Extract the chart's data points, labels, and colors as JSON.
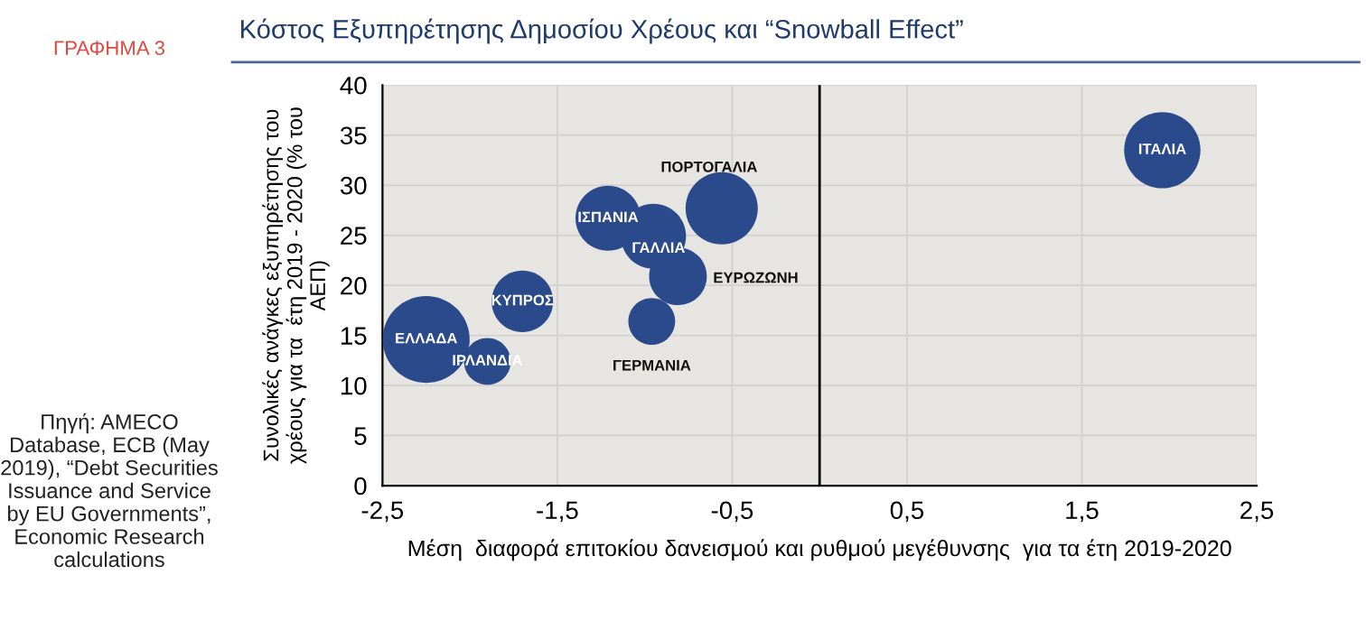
{
  "chart_data": {
    "type": "bubble",
    "title": "Κόστος Εξυπηρέτησης Δημοσίου Χρέους και “Snowball Effect”",
    "subtitle": "ΓΡΑΦΗΜΑ 3",
    "xlabel": "Μέση  διαφορά επιτοκίου δανεισμού και ρυθμού μεγέθυνσης  για τα έτη 2019-2020",
    "ylabel": "Συνολικές ανάγκες εξυπηρέτησης του\nχρέους για τα  έτη 2019 - 2020 (% του\nΑΕΠ)",
    "x": [
      -2.25,
      -1.9,
      -1.7,
      -1.21,
      -0.95,
      -0.81,
      -0.96,
      -0.56,
      1.96
    ],
    "series": [
      {
        "color": "#2b4a8c",
        "values": [
          14.6,
          12.4,
          18.4,
          26.7,
          24.9,
          20.9,
          16.4,
          27.7,
          33.5
        ],
        "sizes": [
          1,
          0.29,
          0.5,
          0.56,
          0.56,
          0.44,
          0.29,
          0.69,
          0.77
        ]
      }
    ],
    "xlim": [
      -2.5,
      2.5
    ],
    "ylim": [
      0,
      40
    ],
    "xticks": [
      {
        "value": -2.5,
        "label": "-2,5"
      },
      {
        "value": -1.5,
        "label": "-1,5"
      },
      {
        "value": -0.5,
        "label": "-0,5"
      },
      {
        "value": 0.5,
        "label": "0,5"
      },
      {
        "value": 1.5,
        "label": "1,5"
      },
      {
        "value": 2.5,
        "label": "2,5"
      }
    ],
    "yticks": [
      0,
      5,
      10,
      15,
      20,
      25,
      30,
      35,
      40
    ],
    "ref_lines": [
      {
        "axis": "x",
        "value": 0,
        "color": "#000000"
      }
    ],
    "annotations": [
      {
        "text": "ΕΛΛΑΔΑ",
        "x": -2.25,
        "y": 14.6
      },
      {
        "text": "ΙΡΛΑΝΔΙΑ",
        "x": -1.9,
        "y": 12.4
      },
      {
        "text": "ΚΥΠΡΟΣ",
        "x": -1.7,
        "y": 18.4
      },
      {
        "text": "ΙΣΠΑΝΙΑ",
        "x": -1.21,
        "y": 26.7
      },
      {
        "text": "ΓΑΛΛΙΑ",
        "x": -0.95,
        "y": 24.9
      },
      {
        "text": "ΕΥΡΩΖΩΝΗ",
        "x": -0.81,
        "y": 20.9
      },
      {
        "text": "ΓΕΡΜΑΝΙΑ",
        "x": -0.96,
        "y": 16.4
      },
      {
        "text": "ΠΟΡΤΟΓΑΛΙΑ",
        "x": -0.56,
        "y": 27.7
      },
      {
        "text": "ΙΤΑΛΙΑ",
        "x": 1.96,
        "y": 33.5
      },
      "Πηγή: AMECO Database, ECB (May 2019), “Debt Securities Issuance and Service by EU Governments”, Economic Research calculations"
    ],
    "grid": true,
    "legend": false
  }
}
